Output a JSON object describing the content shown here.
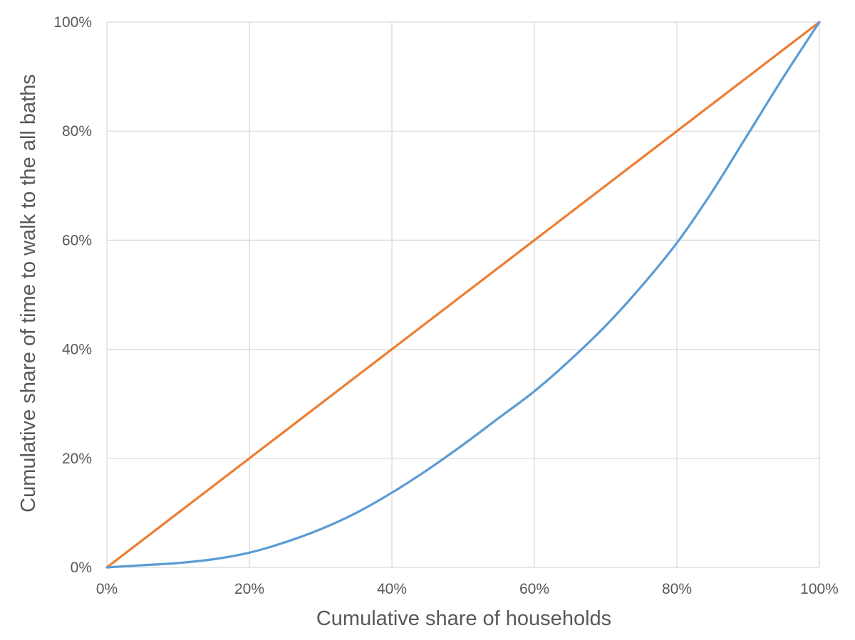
{
  "chart_data": {
    "type": "line",
    "title": "",
    "xlabel": "Cumulative  share  of households",
    "ylabel": "Cumulative  share  of time to walk to the all  baths",
    "xlim": [
      0,
      100
    ],
    "ylim": [
      0,
      100
    ],
    "x_ticks": [
      "0%",
      "20%",
      "40%",
      "60%",
      "80%",
      "100%"
    ],
    "y_ticks": [
      "0%",
      "20%",
      "40%",
      "60%",
      "80%",
      "100%"
    ],
    "grid": true,
    "legend": "none",
    "series": [
      {
        "color": "#ED7D31",
        "points": [
          [
            0,
            0
          ],
          [
            100,
            100
          ]
        ]
      },
      {
        "color": "#5B9BD5",
        "points": [
          [
            0,
            0
          ],
          [
            5,
            0.4
          ],
          [
            10,
            0.8
          ],
          [
            15,
            1.5
          ],
          [
            20,
            2.7
          ],
          [
            25,
            4.6
          ],
          [
            30,
            7.0
          ],
          [
            35,
            10.0
          ],
          [
            40,
            13.7
          ],
          [
            45,
            17.9
          ],
          [
            50,
            22.5
          ],
          [
            55,
            27.4
          ],
          [
            60,
            32.3
          ],
          [
            65,
            38.0
          ],
          [
            70,
            44.3
          ],
          [
            75,
            51.5
          ],
          [
            80,
            59.5
          ],
          [
            85,
            69.0
          ],
          [
            90,
            79.5
          ],
          [
            95,
            90.0
          ],
          [
            100,
            100
          ]
        ]
      }
    ]
  }
}
